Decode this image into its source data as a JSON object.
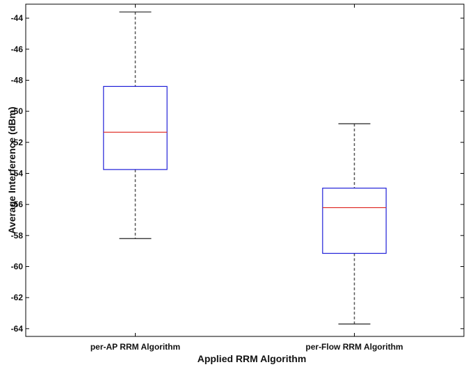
{
  "chart_data": {
    "type": "box",
    "title": "",
    "xlabel": "Applied RRM Algorithm",
    "ylabel": "Average Interference (dBm)",
    "ylim": [
      -64.5,
      -43.1
    ],
    "yticks": [
      -44,
      -46,
      -48,
      -50,
      -52,
      -54,
      -56,
      -58,
      -60,
      -62,
      -64
    ],
    "grid": false,
    "categories": [
      "per-AP RRM Algorithm",
      "per-Flow RRM Algorithm"
    ],
    "boxes": [
      {
        "category": "per-AP RRM Algorithm",
        "whisker_low": -58.2,
        "q1": -53.75,
        "median": -51.35,
        "q3": -48.4,
        "whisker_high": -43.6
      },
      {
        "category": "per-Flow RRM Algorithm",
        "whisker_low": -63.7,
        "q1": -59.15,
        "median": -56.2,
        "q3": -54.95,
        "whisker_high": -50.8
      }
    ],
    "colors": {
      "box": "#1f1fd8",
      "median": "#e0342e",
      "whisker": "#555555",
      "axis": "#000000"
    }
  }
}
